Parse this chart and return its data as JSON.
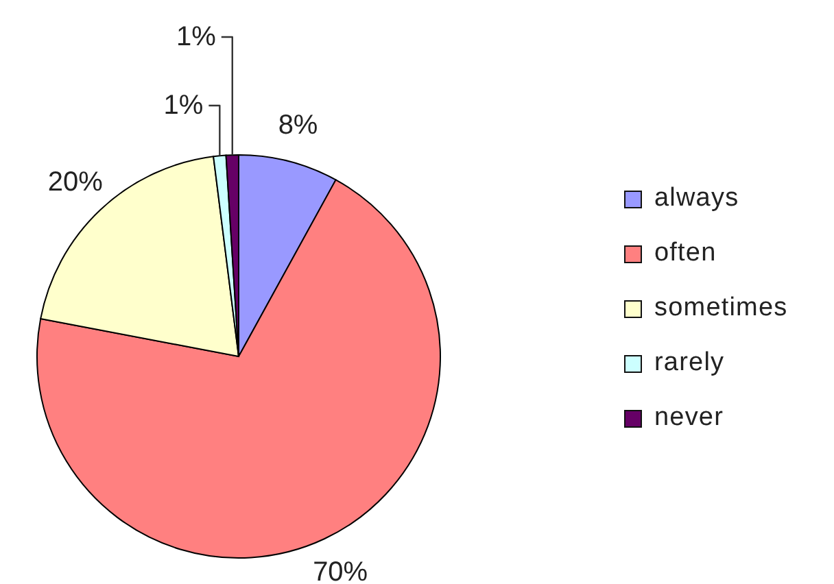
{
  "chart_data": {
    "type": "pie",
    "categories": [
      "always",
      "often",
      "sometimes",
      "rarely",
      "never"
    ],
    "values": [
      8,
      70,
      20,
      1,
      1
    ],
    "colors": [
      "#9999ff",
      "#ff8080",
      "#ffffcc",
      "#ccffff",
      "#660066"
    ],
    "value_labels": [
      "8%",
      "70%",
      "20%",
      "1%",
      "1%"
    ],
    "legend": "right"
  }
}
